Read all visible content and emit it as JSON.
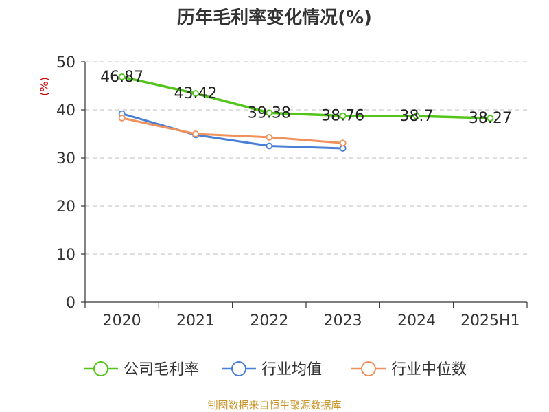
{
  "title": "历年毛利率变化情况(%)",
  "source_text": "制图数据来自恒生聚源数据库",
  "colors": {
    "text": "#333333",
    "ylabel": "#cc0000",
    "grid": "#cccccc",
    "axis": "#333333",
    "source": "#c8952a"
  },
  "chart_data": {
    "type": "line",
    "title": "历年毛利率变化情况(%)",
    "ylabel": "(%)",
    "xlabel": "",
    "categories": [
      "2020",
      "2021",
      "2022",
      "2023",
      "2024",
      "2025H1"
    ],
    "ylim": [
      0,
      50
    ],
    "yticks": [
      0,
      10,
      20,
      30,
      40,
      50
    ],
    "grid": true,
    "legend_position": "bottom",
    "series": [
      {
        "name": "公司毛利率",
        "color": "#52c41a",
        "values": [
          46.87,
          43.42,
          39.38,
          38.76,
          38.7,
          38.27
        ],
        "labels": [
          "46.87",
          "43.42",
          "39.38",
          "38.76",
          "38.7",
          "38.27"
        ]
      },
      {
        "name": "行业均值",
        "color": "#4a7fd6",
        "values": [
          39.2,
          34.8,
          32.5,
          32.0,
          null,
          null
        ]
      },
      {
        "name": "行业中位数",
        "color": "#f0905a",
        "values": [
          38.3,
          35.0,
          34.3,
          33.1,
          null,
          null
        ]
      }
    ]
  }
}
